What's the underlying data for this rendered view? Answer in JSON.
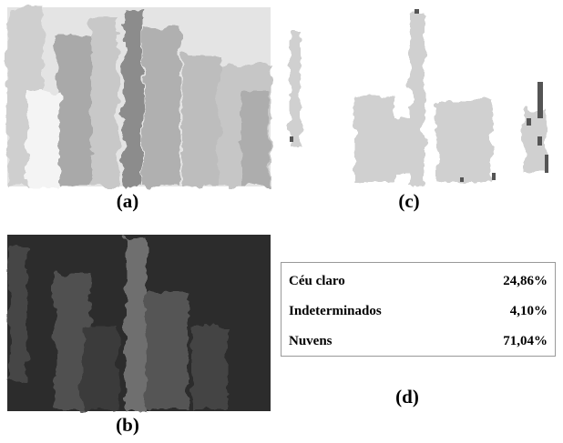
{
  "panels": {
    "a": {
      "label": "(a)"
    },
    "b": {
      "label": "(b)"
    },
    "c": {
      "label": "(c)"
    },
    "d": {
      "label": "(d)"
    }
  },
  "table": {
    "rows": [
      [
        "Céu claro",
        "24,86%"
      ],
      [
        "Indeterminados",
        "4,10%"
      ],
      [
        "Nuvens",
        "71,04%"
      ]
    ]
  }
}
